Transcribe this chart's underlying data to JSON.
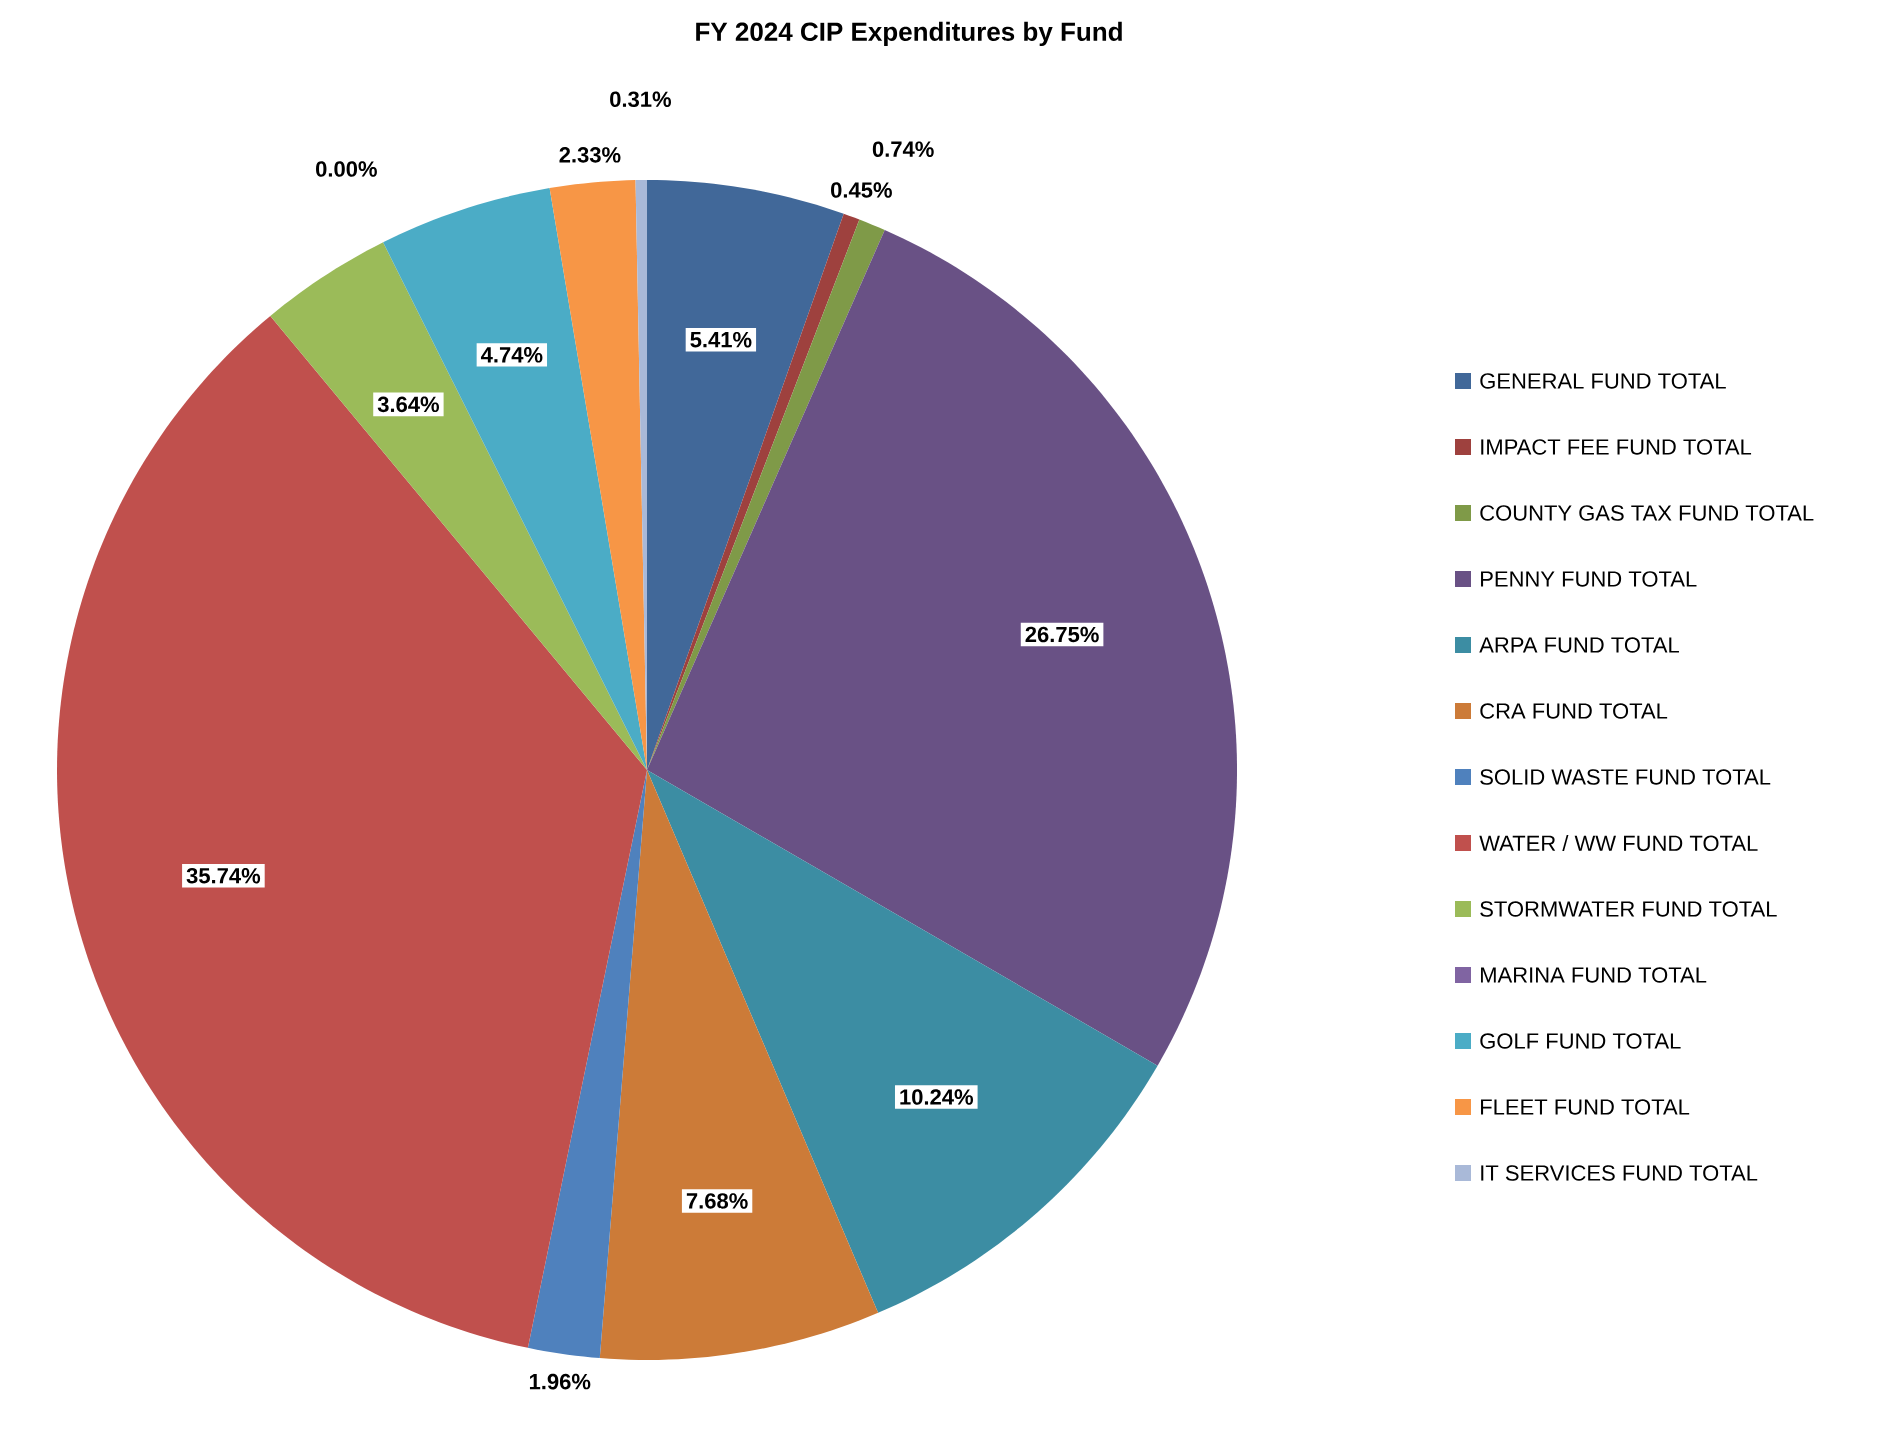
{
  "chart_data": {
    "type": "pie",
    "title": "FY 2024 CIP Expenditures by Fund",
    "categories": [
      "GENERAL FUND TOTAL",
      "IMPACT FEE  FUND TOTAL",
      "COUNTY GAS TAX FUND TOTAL",
      "PENNY FUND TOTAL",
      "ARPA FUND TOTAL",
      "CRA FUND TOTAL",
      "SOLID WASTE FUND TOTAL",
      "WATER / WW FUND TOTAL",
      "STORMWATER FUND TOTAL",
      "MARINA FUND TOTAL",
      "GOLF FUND TOTAL",
      "FLEET FUND TOTAL",
      "IT SERVICES FUND TOTAL"
    ],
    "values": [
      5.41,
      0.45,
      0.74,
      26.75,
      10.24,
      7.68,
      1.96,
      35.74,
      3.64,
      0.0,
      4.74,
      2.33,
      0.31
    ],
    "value_labels": [
      "5.41%",
      "0.45%",
      "0.74%",
      "26.75%",
      "10.24%",
      "7.68%",
      "1.96%",
      "35.74%",
      "3.64%",
      "0.00%",
      "4.74%",
      "2.33%",
      "0.31%"
    ],
    "colors": [
      "#416899",
      "#9E413E",
      "#7F9A48",
      "#695185",
      "#3C8DA3",
      "#CC7B38",
      "#4F81BD",
      "#C0504D",
      "#9BBB59",
      "#8064A2",
      "#4BACC6",
      "#F79646",
      "#A9B9D8"
    ],
    "legend": "right"
  }
}
